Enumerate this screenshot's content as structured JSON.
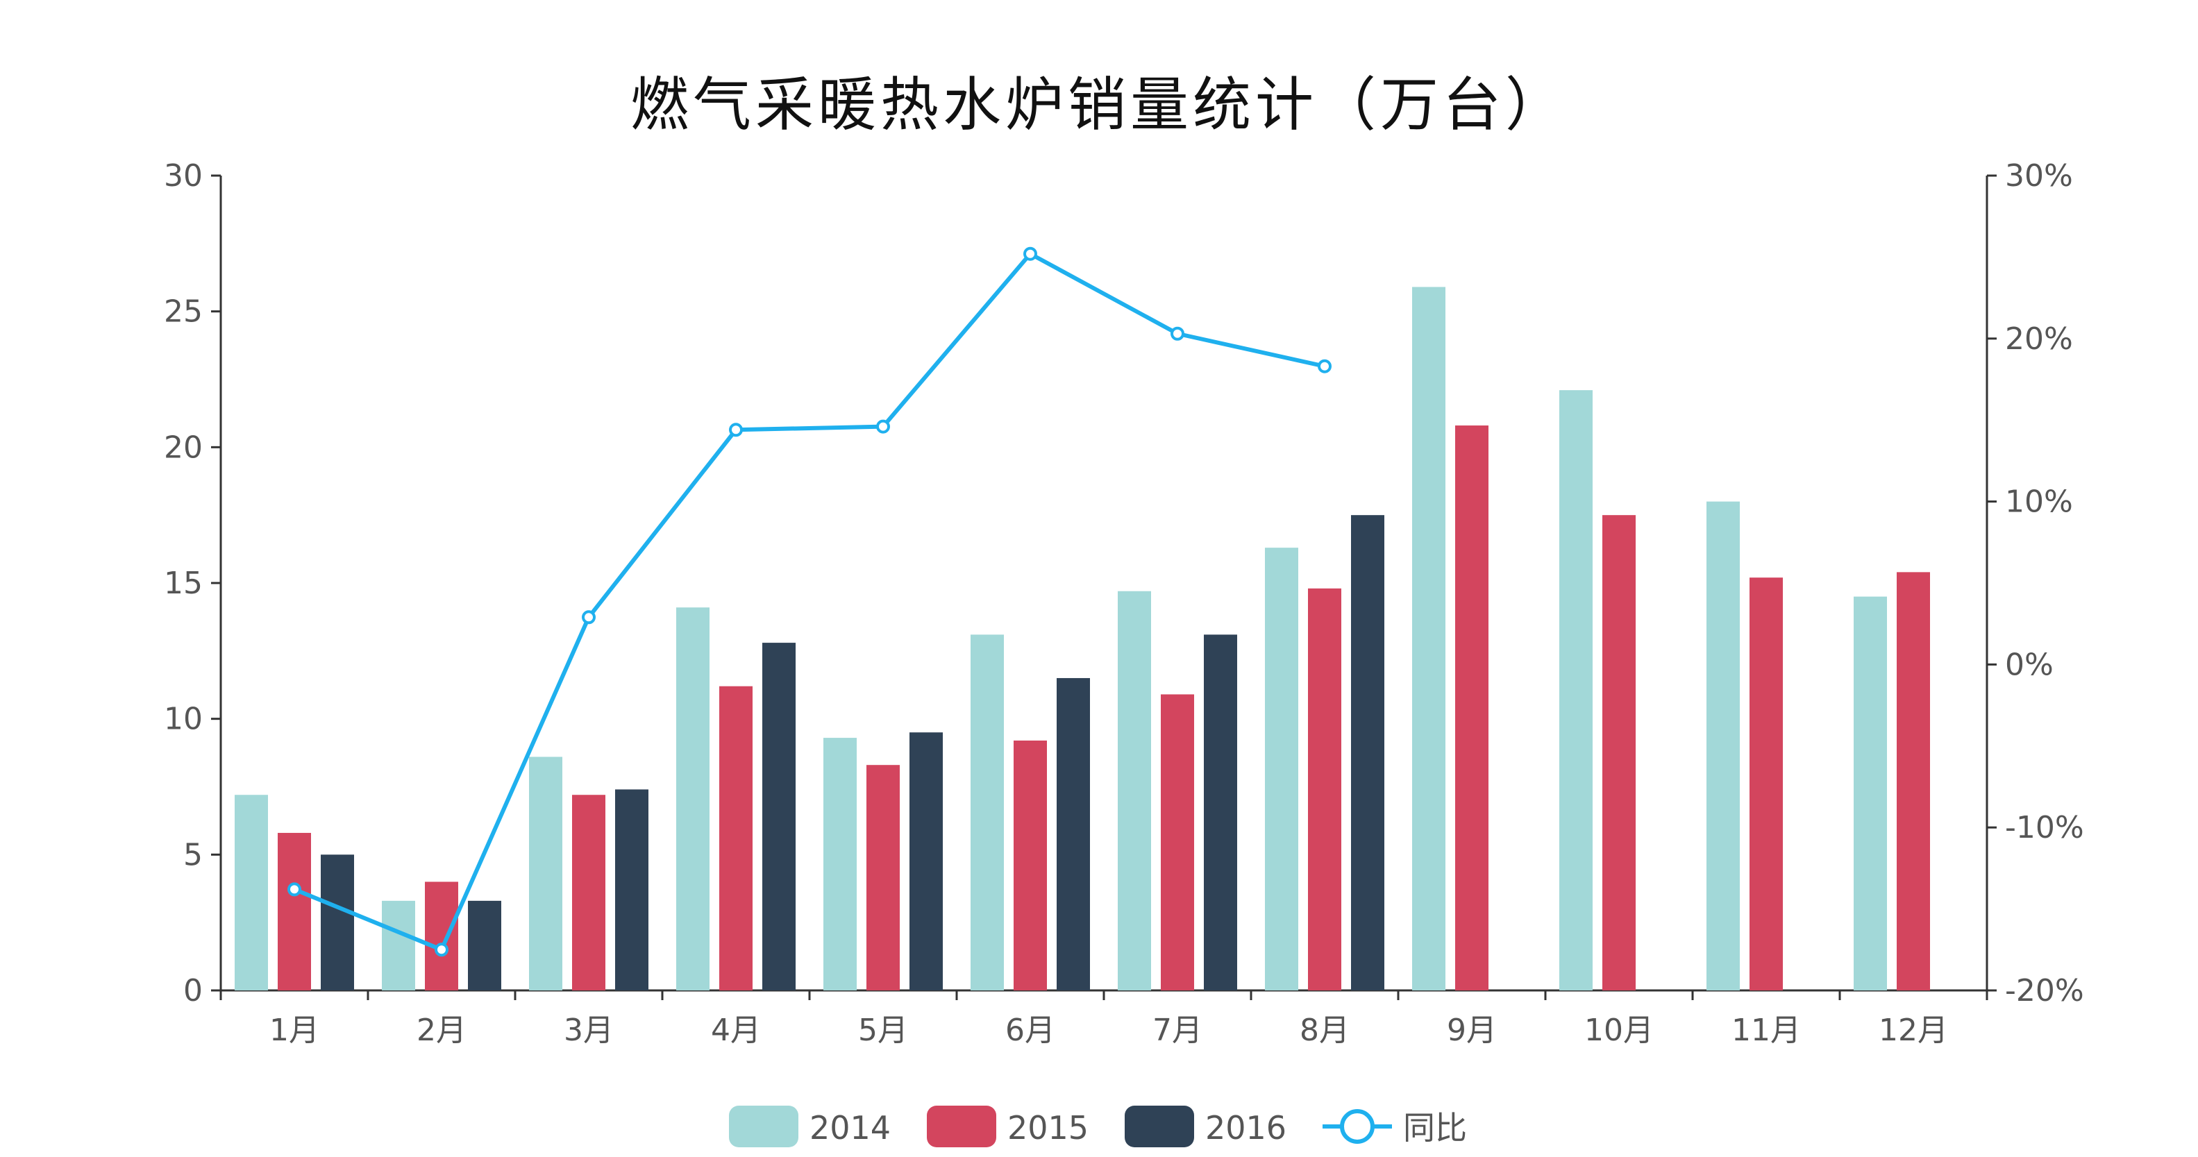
{
  "chart_data": {
    "type": "bar",
    "title": "燃气采暖热水炉销量统计（万台）",
    "categories": [
      "1月",
      "2月",
      "3月",
      "4月",
      "5月",
      "6月",
      "7月",
      "8月",
      "9月",
      "10月",
      "11月",
      "12月"
    ],
    "left_axis": {
      "ylim": [
        0,
        30
      ],
      "ticks": [
        0,
        5,
        10,
        15,
        20,
        25,
        30
      ]
    },
    "right_axis": {
      "ylim": [
        -20,
        30
      ],
      "ticks": [
        "-20%",
        "-10%",
        "0%",
        "10%",
        "20%",
        "30%"
      ],
      "unit": "%"
    },
    "series": [
      {
        "name": "2014",
        "type": "bar",
        "axis": "left",
        "color": "#a2d8d8",
        "values": [
          7.2,
          3.3,
          8.6,
          14.1,
          9.3,
          13.1,
          14.7,
          16.3,
          25.9,
          22.1,
          18.0,
          14.5
        ]
      },
      {
        "name": "2015",
        "type": "bar",
        "axis": "left",
        "color": "#d3455e",
        "values": [
          5.8,
          4.0,
          7.2,
          11.2,
          8.3,
          9.2,
          10.9,
          14.8,
          20.8,
          17.5,
          15.2,
          15.4
        ]
      },
      {
        "name": "2016",
        "type": "bar",
        "axis": "left",
        "color": "#2f4256",
        "values": [
          5.0,
          3.3,
          7.4,
          12.8,
          9.5,
          11.5,
          13.1,
          17.5,
          null,
          null,
          null,
          null
        ]
      },
      {
        "name": "同比",
        "type": "line",
        "axis": "right",
        "color": "#1fb0ee",
        "values": [
          -13.8,
          -17.5,
          2.9,
          14.4,
          14.6,
          25.2,
          20.3,
          18.3,
          null,
          null,
          null,
          null
        ]
      }
    ],
    "legend": {
      "position": "bottom-center"
    },
    "grid": false
  }
}
